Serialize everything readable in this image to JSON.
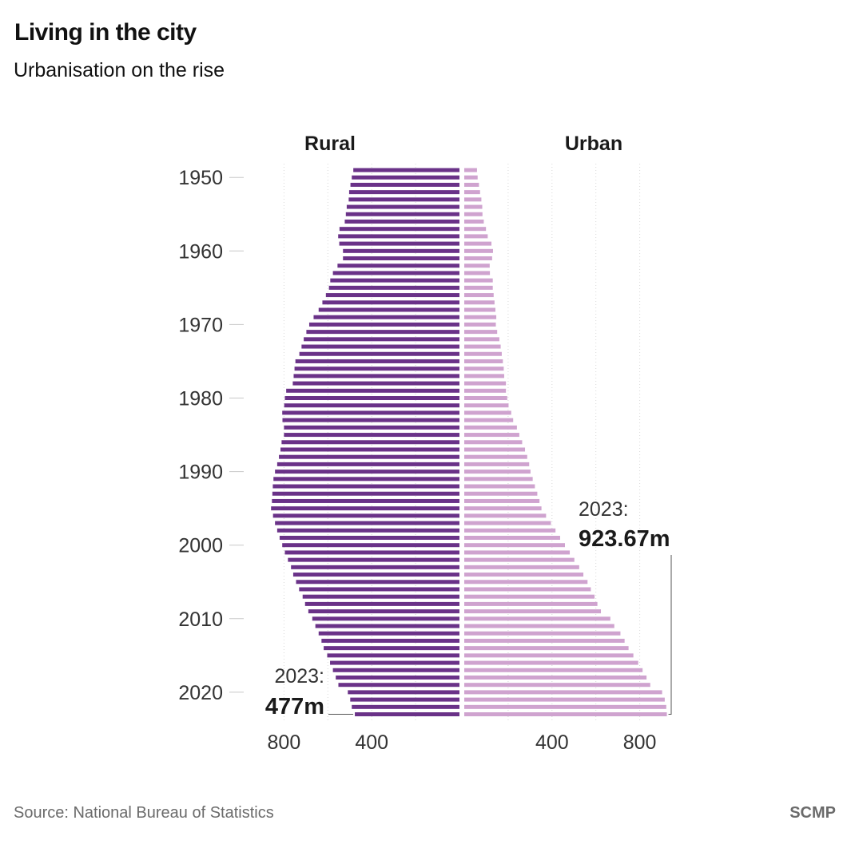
{
  "header": {
    "title": "Living in the city",
    "subtitle": "Urbanisation on the rise"
  },
  "footer": {
    "source": "Source: National Bureau of Statistics",
    "brand": "SCMP"
  },
  "colors": {
    "rural": "#6a3288",
    "urban": "#cfa3cf",
    "grid": "#d8d8d8",
    "text": "#1a1a1a"
  },
  "chart_data": {
    "type": "bar",
    "title": "Living in the city",
    "subtitle": "Urbanisation on the rise",
    "xlabel": "",
    "ylabel": "",
    "units": "million people",
    "left_series_label": "Rural",
    "right_series_label": "Urban",
    "year_ticks": [
      "1950",
      "1960",
      "1970",
      "1980",
      "1990",
      "2000",
      "2010",
      "2020"
    ],
    "value_ticks": {
      "rural": [
        "800",
        "400"
      ],
      "urban": [
        "400",
        "800"
      ]
    },
    "xlim": [
      0,
      900
    ],
    "categories": [
      1949,
      1950,
      1951,
      1952,
      1953,
      1954,
      1955,
      1956,
      1957,
      1958,
      1959,
      1960,
      1961,
      1962,
      1963,
      1964,
      1965,
      1966,
      1967,
      1968,
      1969,
      1970,
      1971,
      1972,
      1973,
      1974,
      1975,
      1976,
      1977,
      1978,
      1979,
      1980,
      1981,
      1982,
      1983,
      1984,
      1985,
      1986,
      1987,
      1988,
      1989,
      1990,
      1991,
      1992,
      1993,
      1994,
      1995,
      1996,
      1997,
      1998,
      1999,
      2000,
      2001,
      2002,
      2003,
      2004,
      2005,
      2006,
      2007,
      2008,
      2009,
      2010,
      2011,
      2012,
      2013,
      2014,
      2015,
      2016,
      2017,
      2018,
      2019,
      2020,
      2021,
      2022,
      2023
    ],
    "series": [
      {
        "name": "Rural",
        "values": [
          484,
          491,
          497,
          503,
          505,
          514,
          518,
          523,
          547,
          553,
          548,
          531,
          531,
          556,
          577,
          589,
          595,
          609,
          625,
          642,
          665,
          685,
          698,
          710,
          720,
          730,
          748,
          752,
          756,
          760,
          790,
          796,
          799,
          808,
          807,
          800,
          800,
          811,
          816,
          823,
          831,
          841,
          848,
          851,
          853,
          855,
          859,
          850,
          841,
          831,
          820,
          808,
          796,
          782,
          768,
          758,
          745,
          731,
          715,
          704,
          689,
          671,
          657,
          642,
          629,
          619,
          603,
          590,
          577,
          564,
          552,
          509,
          498,
          491,
          477
        ]
      },
      {
        "name": "Urban",
        "values": [
          58,
          61,
          67,
          72,
          78,
          82,
          83,
          89,
          99,
          107,
          124,
          131,
          127,
          116,
          117,
          130,
          130,
          134,
          138,
          142,
          146,
          144,
          150,
          160,
          166,
          171,
          176,
          180,
          182,
          190,
          190,
          196,
          202,
          214,
          223,
          240,
          251,
          264,
          277,
          287,
          296,
          302,
          312,
          322,
          333,
          343,
          352,
          373,
          395,
          416,
          437,
          459,
          481,
          502,
          524,
          543,
          562,
          577,
          594,
          607,
          623,
          666,
          684,
          712,
          731,
          749,
          771,
          793,
          813,
          831,
          848,
          902,
          914,
          921,
          923.67
        ]
      }
    ],
    "annotations": {
      "rural_year": "2023:",
      "rural_value": "477m",
      "urban_year": "2023:",
      "urban_value": "923.67m"
    }
  }
}
